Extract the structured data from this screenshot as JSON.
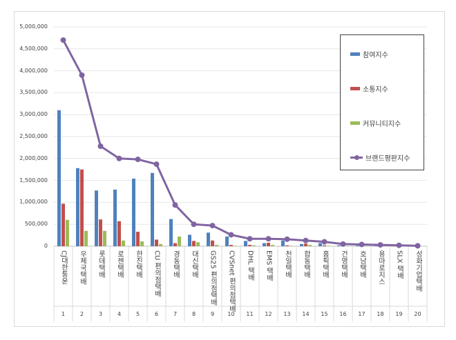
{
  "chart_data": {
    "type": "bar",
    "categories": [
      "CJ대한통운",
      "우체국택배",
      "롯데택배",
      "로젠택배",
      "한진택배",
      "CU 편의점택배",
      "경동택배",
      "대신택배",
      "GS25 편의점택배",
      "CVSnet 편의점택배",
      "DHL 택배",
      "EMS 택배",
      "천일택배",
      "합동택배",
      "홈픽택배",
      "건영택배",
      "호남택배",
      "용마로지스",
      "SLX 택배",
      "성화기업택배"
    ],
    "category_numbers": [
      "1",
      "2",
      "3",
      "4",
      "5",
      "6",
      "7",
      "8",
      "9",
      "10",
      "11",
      "12",
      "13",
      "14",
      "15",
      "16",
      "17",
      "18",
      "19",
      "20"
    ],
    "ylim": [
      0,
      5000000
    ],
    "yticks": [
      "0",
      "500,000",
      "1,000,000",
      "1,500,000",
      "2,000,000",
      "2,500,000",
      "3,000,000",
      "3,500,000",
      "4,000,000",
      "4,500,000",
      "5,000,000"
    ],
    "grid": true,
    "legend_position": "right",
    "series": [
      {
        "name": "참여지수",
        "type": "bar",
        "color": "#4f81bd",
        "values": [
          3100000,
          1780000,
          1270000,
          1290000,
          1540000,
          1670000,
          620000,
          260000,
          310000,
          220000,
          120000,
          70000,
          130000,
          50000,
          70000,
          20000,
          15000,
          10000,
          8000,
          5000
        ]
      },
      {
        "name": "소통지수",
        "type": "bar",
        "color": "#c0504d",
        "values": [
          970000,
          1750000,
          610000,
          570000,
          330000,
          150000,
          70000,
          120000,
          130000,
          30000,
          30000,
          80000,
          20000,
          60000,
          20000,
          10000,
          8000,
          6000,
          4000,
          3000
        ]
      },
      {
        "name": "커뮤니티지수",
        "type": "bar",
        "color": "#9bbb59",
        "values": [
          600000,
          350000,
          350000,
          130000,
          110000,
          50000,
          220000,
          90000,
          30000,
          10000,
          20000,
          30000,
          10000,
          30000,
          10000,
          5000,
          4000,
          3000,
          2000,
          1000
        ]
      },
      {
        "name": "브랜드평판지수",
        "type": "line",
        "color": "#8064a2",
        "values": [
          4700000,
          3900000,
          2280000,
          2000000,
          1980000,
          1870000,
          940000,
          500000,
          470000,
          260000,
          170000,
          170000,
          160000,
          130000,
          100000,
          50000,
          40000,
          30000,
          20000,
          10000
        ]
      }
    ]
  }
}
